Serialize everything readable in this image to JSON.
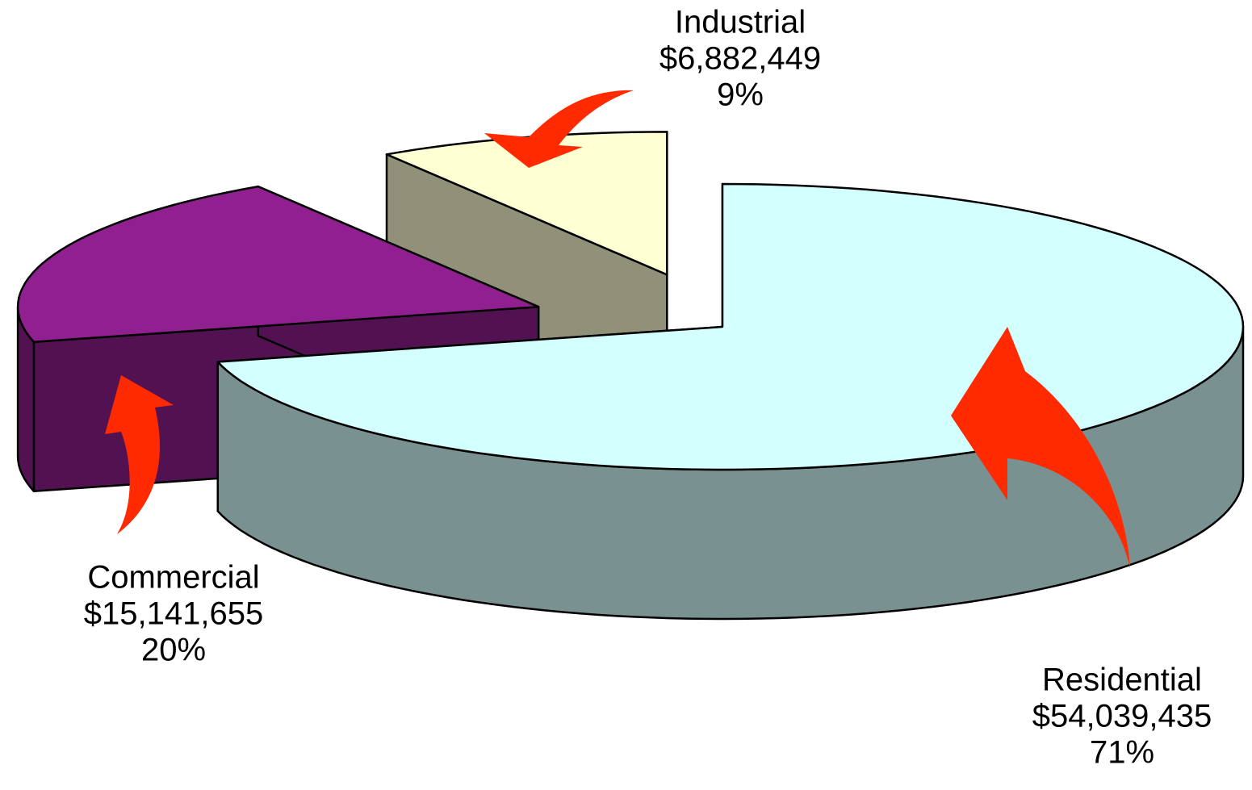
{
  "chart_data": {
    "type": "pie",
    "categories": [
      "Residential",
      "Commercial",
      "Industrial"
    ],
    "values": [
      54039435,
      15141655,
      6882449
    ],
    "value_labels": [
      "$54,039,435",
      "$15,141,655",
      "$6,882,449"
    ],
    "percents": [
      71,
      20,
      9
    ],
    "percent_labels": [
      "71%",
      "20%",
      "9%"
    ],
    "colors": [
      "#d4ffff",
      "#90208f",
      "#ffffd4"
    ]
  }
}
